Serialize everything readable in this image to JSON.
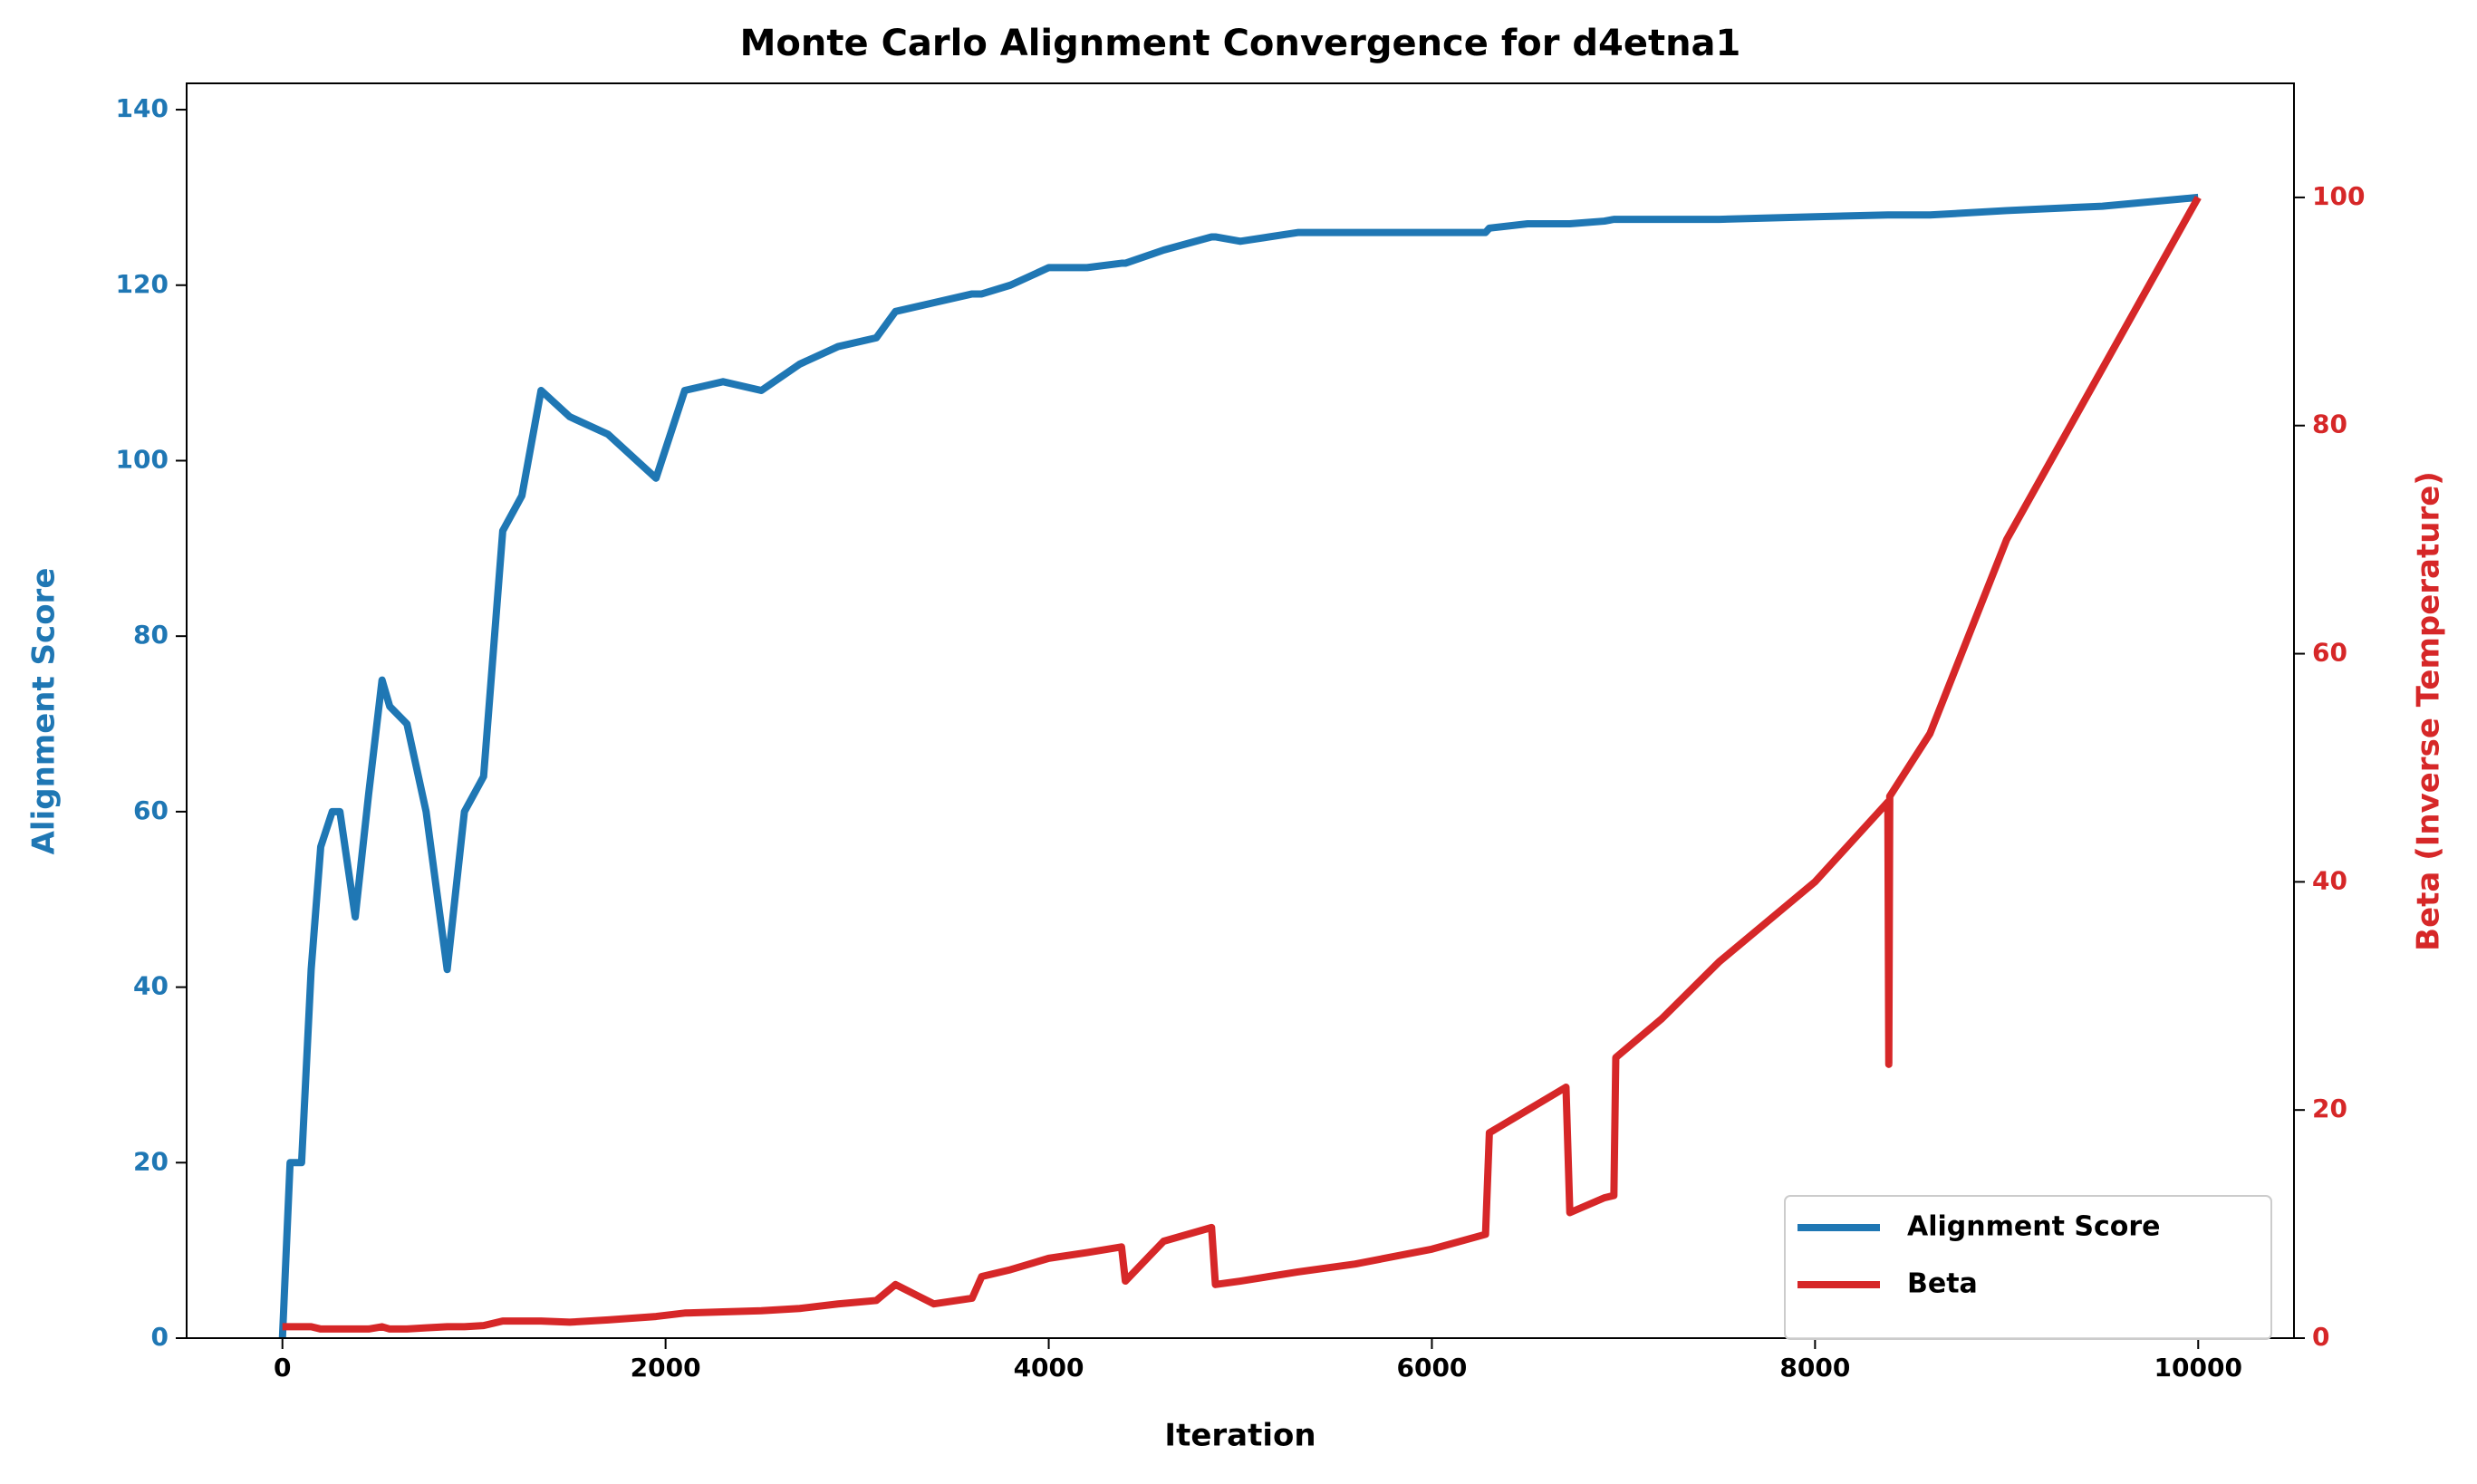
{
  "chart_data": {
    "type": "line",
    "title": "Monte Carlo Alignment Convergence for d4etna1",
    "x_label": "Iteration",
    "y_label": "Alignment Score",
    "y2_label": "Beta (Inverse Temperature)",
    "x": [
      0,
      40,
      100,
      150,
      200,
      260,
      300,
      380,
      450,
      520,
      560,
      650,
      750,
      860,
      950,
      1050,
      1150,
      1250,
      1350,
      1500,
      1700,
      1950,
      2100,
      2300,
      2500,
      2700,
      2900,
      3100,
      3200,
      3400,
      3600,
      3650,
      3800,
      4000,
      4200,
      4380,
      4400,
      4600,
      4850,
      4870,
      5000,
      5300,
      5600,
      6000,
      6280,
      6300,
      6500,
      6700,
      6720,
      6900,
      6950,
      6960,
      7200,
      7500,
      8000,
      8380,
      8385,
      8390,
      8600,
      9000,
      9500,
      10000
    ],
    "series": [
      {
        "name": "Alignment Score",
        "color": "#1f77b4",
        "axis": "y",
        "values": [
          0,
          20,
          20,
          42,
          56,
          60,
          60,
          48,
          62,
          75,
          72,
          70,
          60,
          42,
          60,
          64,
          92,
          96,
          108,
          105,
          103,
          98,
          108,
          109,
          108,
          111,
          113,
          114,
          117,
          118,
          119,
          119,
          120,
          122,
          122,
          122.5,
          122.5,
          124,
          125.5,
          125.5,
          125,
          126,
          126,
          126,
          126,
          126.5,
          127,
          127,
          127,
          127.3,
          127.5,
          127.5,
          127.5,
          127.5,
          127.8,
          128,
          128,
          128,
          128,
          128.5,
          129,
          130
        ]
      },
      {
        "name": "Beta",
        "color": "#d62728",
        "axis": "y2",
        "values": [
          1,
          1,
          1,
          1,
          0.8,
          0.8,
          0.8,
          0.8,
          0.8,
          1,
          0.8,
          0.8,
          0.9,
          1,
          1,
          1.1,
          1.5,
          1.5,
          1.5,
          1.4,
          1.6,
          1.9,
          2.2,
          2.3,
          2.4,
          2.6,
          3,
          3.3,
          4.7,
          3,
          3.5,
          5.4,
          6,
          7,
          7.5,
          8,
          5,
          8.5,
          9.7,
          4.7,
          5,
          5.8,
          6.5,
          7.8,
          9.1,
          18,
          20,
          22,
          11,
          12.3,
          12.5,
          24.6,
          28,
          33,
          40,
          47,
          24,
          47.5,
          53,
          70,
          85,
          100
        ]
      }
    ],
    "xlim": [
      -500,
      10500
    ],
    "xticks": [
      0,
      2000,
      4000,
      6000,
      8000,
      10000
    ],
    "ylim": [
      0,
      143
    ],
    "yticks": [
      0,
      20,
      40,
      60,
      80,
      100,
      120,
      140
    ],
    "y2lim": [
      0,
      110
    ],
    "y2ticks": [
      0,
      20,
      40,
      60,
      80,
      100
    ],
    "grid": false,
    "legend": "lower right"
  }
}
